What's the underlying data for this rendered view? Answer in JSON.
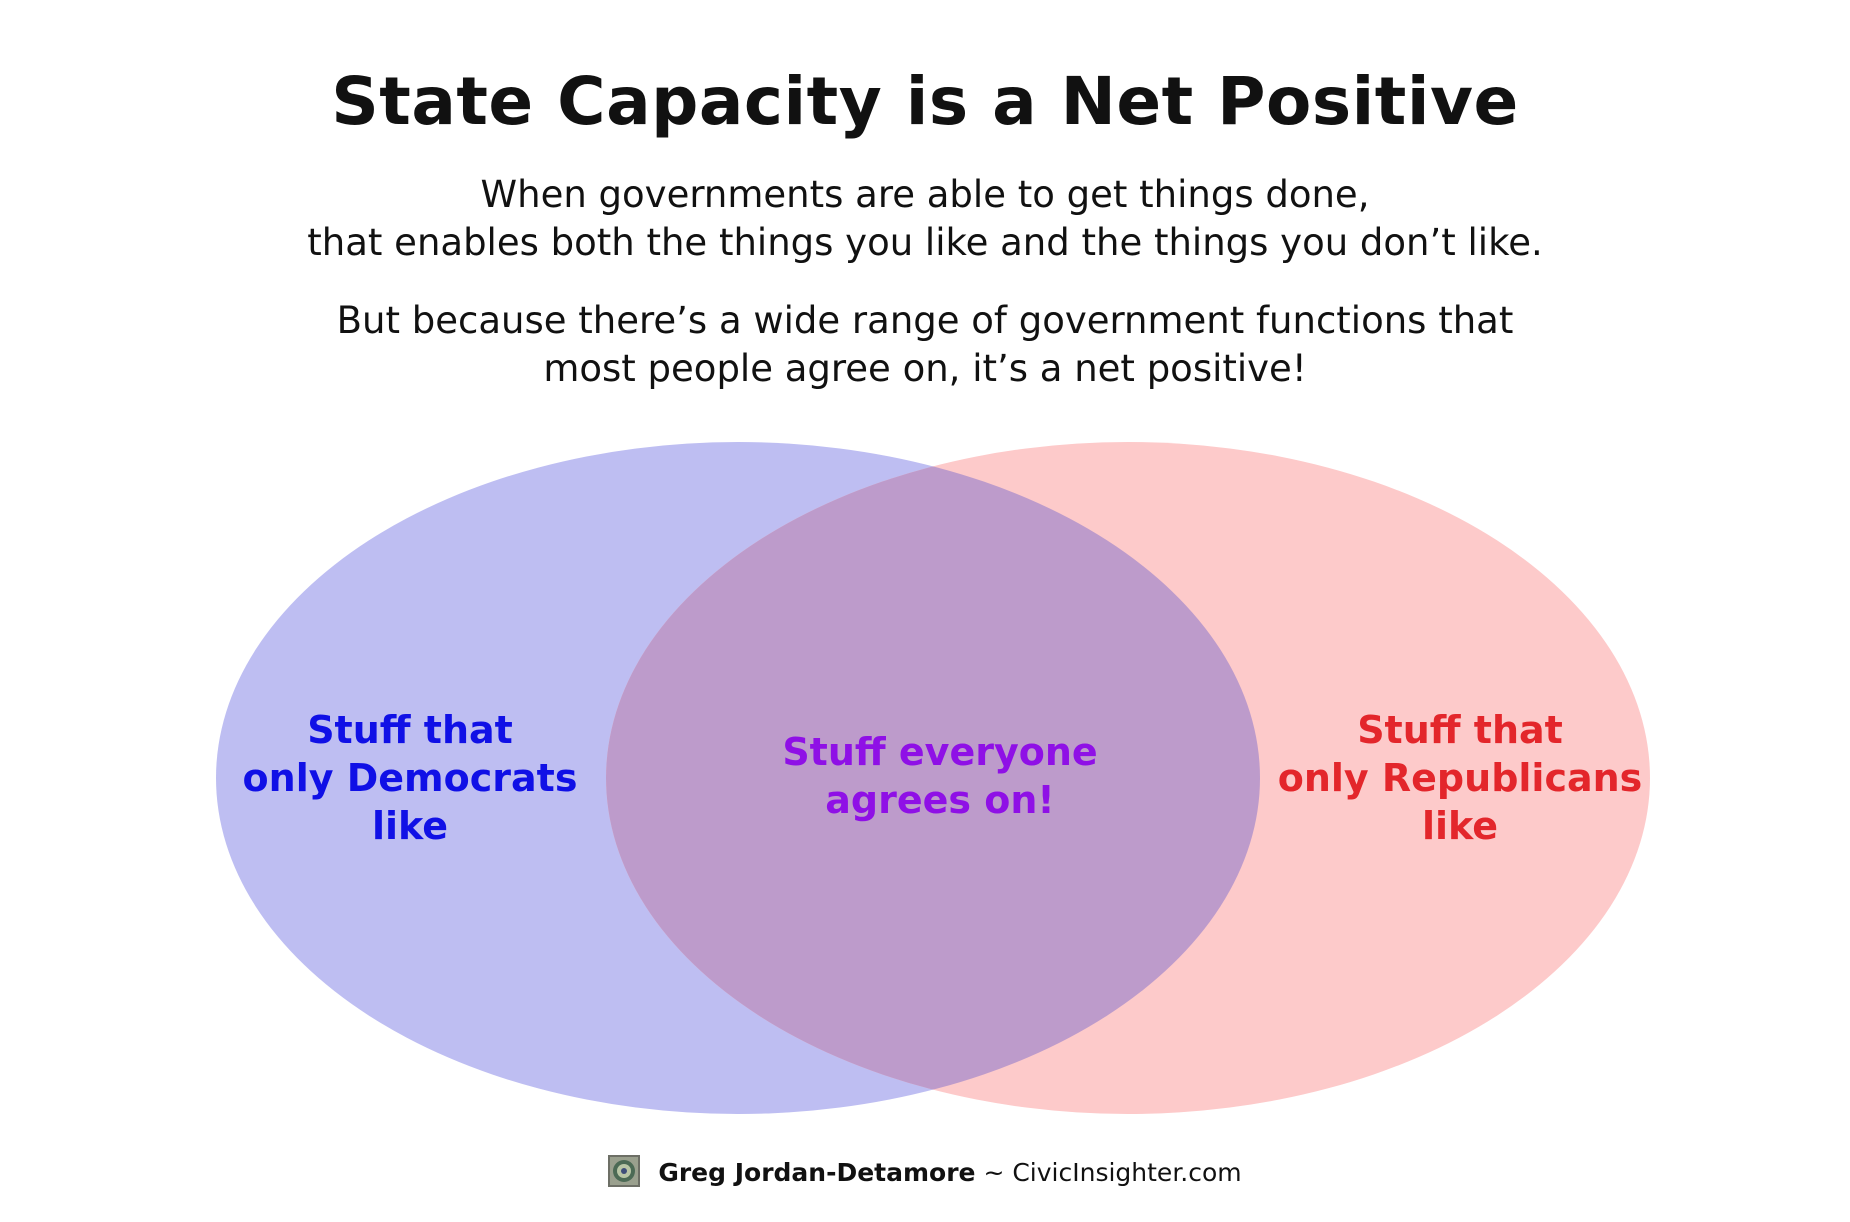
{
  "title": "State Capacity is a Net Positive",
  "paragraph1": [
    "When governments are able to get things done,",
    "that enables both the things you like and the things you don’t like."
  ],
  "paragraph2": [
    "But because there’s a wide range of government functions that",
    "most people agree on, it’s a net positive!"
  ],
  "venn": {
    "left_set": {
      "label": [
        "Stuff that",
        "only Democrats",
        "like"
      ],
      "fill": "#bebef2",
      "text_color": "#1010e6"
    },
    "right_set": {
      "label": [
        "Stuff that",
        "only Republicans",
        "like"
      ],
      "fill": "#fdcaca",
      "text_color": "#e3262b"
    },
    "overlap": {
      "label": [
        "Stuff everyone",
        "agrees on!"
      ],
      "fill": "#bd9bcb",
      "text_color": "#8f10e6"
    }
  },
  "footer": {
    "icon": "author-avatar-icon",
    "author": "Greg Jordan-Detamore",
    "separator": " ~ ",
    "site": "CivicInsighter.com"
  }
}
